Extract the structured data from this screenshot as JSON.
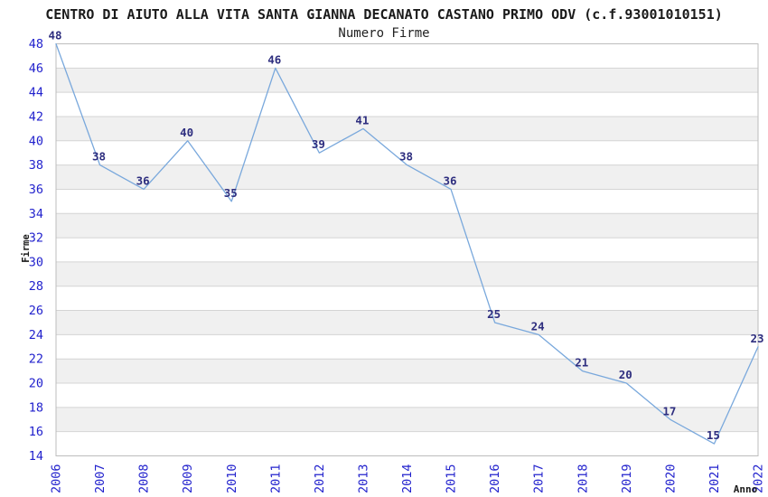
{
  "title": "CENTRO DI AIUTO ALLA VITA SANTA GIANNA DECANATO CASTANO PRIMO ODV (c.f.93001010151)",
  "subtitle": "Numero Firme",
  "chart_data": {
    "type": "line",
    "x": [
      2006,
      2007,
      2008,
      2009,
      2010,
      2011,
      2012,
      2013,
      2014,
      2015,
      2016,
      2017,
      2018,
      2019,
      2020,
      2021,
      2022
    ],
    "series": [
      {
        "name": "Numero Firme",
        "values": [
          48,
          38,
          36,
          40,
          35,
          46,
          39,
          41,
          38,
          36,
          25,
          24,
          21,
          20,
          17,
          15,
          23
        ]
      }
    ],
    "xlabel": "Anno",
    "ylabel": "Firme",
    "ylim": [
      14,
      48
    ],
    "ytick_step": 2,
    "grid": true,
    "legend": "none",
    "point_labels": true,
    "banded_background": true
  },
  "colors": {
    "line": "#79a8dc",
    "axis_tick_label": "#2222cd",
    "point_label": "#2e2e7f",
    "band": "#f0f0f0",
    "gridline": "#d4d4d4",
    "plot_border": "#bdbdbd",
    "text": "#1a1a1a",
    "background": "#ffffff"
  }
}
